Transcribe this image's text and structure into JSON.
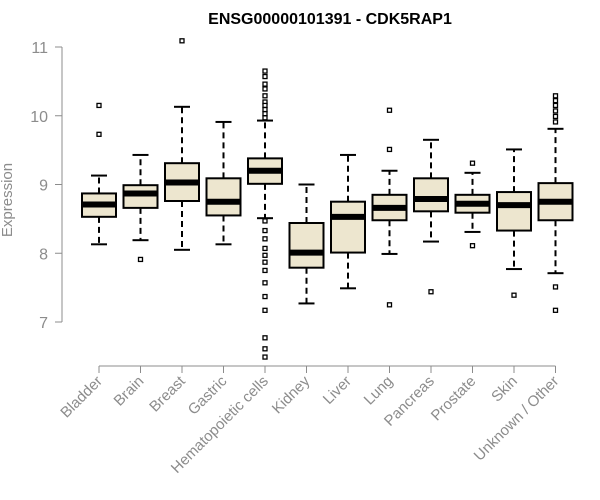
{
  "chart_data": {
    "type": "boxplot",
    "title": "ENSG00000101391 - CDK5RAP1",
    "xlabel": "",
    "ylabel": "Expression",
    "ylim": [
      6.4,
      11.1
    ],
    "yticks": [
      7,
      8,
      9,
      10,
      11
    ],
    "grid": false,
    "legend": "none",
    "colors": {
      "box_fill": "#ede6cf",
      "stroke": "#000000",
      "axis": "#8c8c8c"
    },
    "categories": [
      "Bladder",
      "Brain",
      "Breast",
      "Gastric",
      "Hematopoietic cells",
      "Kidney",
      "Liver",
      "Lung",
      "Pancreas",
      "Prostate",
      "Skin",
      "Unknown / Other"
    ],
    "boxes": [
      {
        "whisker_low": 8.13,
        "q1": 8.53,
        "median": 8.71,
        "q3": 8.87,
        "whisker_high": 9.13,
        "outliers": [
          10.15,
          9.73
        ]
      },
      {
        "whisker_low": 8.19,
        "q1": 8.66,
        "median": 8.87,
        "q3": 8.99,
        "whisker_high": 9.43,
        "outliers": [
          7.91
        ]
      },
      {
        "whisker_low": 8.05,
        "q1": 8.76,
        "median": 9.03,
        "q3": 9.31,
        "whisker_high": 10.13,
        "outliers": [
          11.09
        ]
      },
      {
        "whisker_low": 8.13,
        "q1": 8.55,
        "median": 8.75,
        "q3": 9.09,
        "whisker_high": 9.91,
        "outliers": []
      },
      {
        "whisker_low": 8.51,
        "q1": 9.01,
        "median": 9.2,
        "q3": 9.38,
        "whisker_high": 9.93,
        "outliers": [
          10.65,
          10.57,
          10.46,
          10.39,
          10.29,
          10.2,
          10.15,
          10.09,
          10.03,
          9.97,
          8.47,
          8.33,
          8.21,
          8.07,
          7.97,
          7.87,
          7.75,
          7.57,
          7.37,
          7.17,
          6.77,
          6.61,
          6.49
        ]
      },
      {
        "whisker_low": 7.27,
        "q1": 7.79,
        "median": 8.01,
        "q3": 8.44,
        "whisker_high": 9.0,
        "outliers": []
      },
      {
        "whisker_low": 7.49,
        "q1": 8.01,
        "median": 8.53,
        "q3": 8.75,
        "whisker_high": 9.43,
        "outliers": []
      },
      {
        "whisker_low": 7.99,
        "q1": 8.48,
        "median": 8.66,
        "q3": 8.85,
        "whisker_high": 9.2,
        "outliers": [
          10.08,
          9.51,
          7.25
        ]
      },
      {
        "whisker_low": 8.17,
        "q1": 8.61,
        "median": 8.79,
        "q3": 9.09,
        "whisker_high": 9.65,
        "outliers": [
          7.44
        ]
      },
      {
        "whisker_low": 8.31,
        "q1": 8.59,
        "median": 8.72,
        "q3": 8.85,
        "whisker_high": 9.17,
        "outliers": [
          9.31,
          8.11
        ]
      },
      {
        "whisker_low": 7.77,
        "q1": 8.33,
        "median": 8.7,
        "q3": 8.89,
        "whisker_high": 9.51,
        "outliers": [
          7.39
        ]
      },
      {
        "whisker_low": 7.71,
        "q1": 8.48,
        "median": 8.75,
        "q3": 9.02,
        "whisker_high": 9.81,
        "outliers": [
          10.29,
          10.22,
          10.15,
          10.07,
          9.99,
          9.91,
          7.51,
          7.17
        ]
      }
    ]
  }
}
